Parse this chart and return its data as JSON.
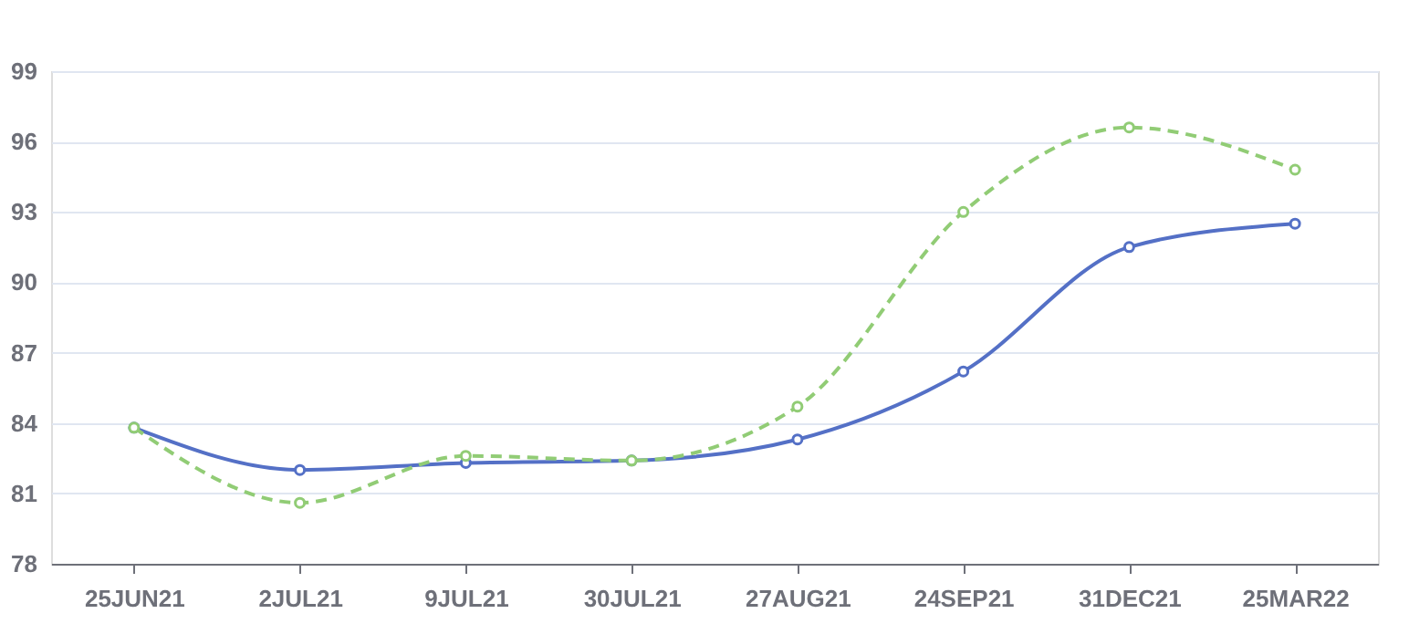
{
  "chart_data": {
    "type": "line",
    "categories": [
      "25JUN21",
      "2JUL21",
      "9JUL21",
      "30JUL21",
      "27AUG21",
      "24SEP21",
      "31DEC21",
      "25MAR22"
    ],
    "series": [
      {
        "color": "#5470c6",
        "line_style": "solid",
        "values": [
          83.8,
          82.0,
          82.3,
          82.4,
          83.3,
          86.2,
          91.5,
          92.5
        ]
      },
      {
        "color": "#91cc75",
        "line_style": "dashed",
        "values": [
          83.8,
          80.6,
          82.6,
          82.4,
          84.7,
          93.0,
          96.6,
          94.8
        ]
      }
    ],
    "ylim": [
      78,
      99
    ],
    "yticks": [
      78,
      81,
      84,
      87,
      90,
      93,
      96,
      99
    ],
    "grid": "y",
    "marker": "circle"
  }
}
